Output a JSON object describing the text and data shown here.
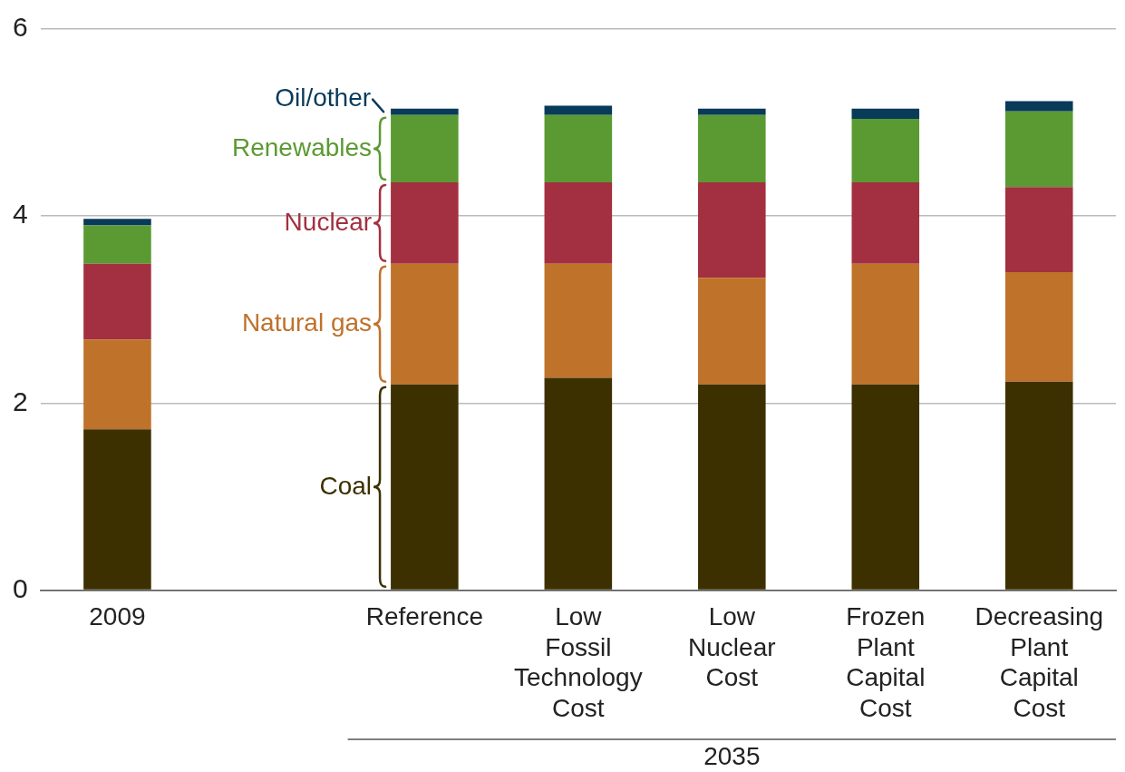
{
  "chart_data": {
    "type": "bar",
    "stacked": true,
    "categories": [
      "2009",
      null,
      "Reference",
      "Low Fossil Technology Cost",
      "Low Nuclear Cost",
      "Frozen Plant Capital Cost",
      "Decreasing Plant Capital Cost"
    ],
    "series": [
      {
        "name": "Coal",
        "color": "#3d3000",
        "values": [
          1.72,
          null,
          2.2,
          2.27,
          2.2,
          2.2,
          2.23
        ]
      },
      {
        "name": "Natural gas",
        "color": "#bf722a",
        "values": [
          0.96,
          null,
          1.29,
          1.22,
          1.14,
          1.29,
          1.17
        ]
      },
      {
        "name": "Nuclear",
        "color": "#a33040",
        "values": [
          0.81,
          null,
          0.87,
          0.87,
          1.02,
          0.87,
          0.91
        ]
      },
      {
        "name": "Renewables",
        "color": "#5b9a32",
        "values": [
          0.41,
          null,
          0.72,
          0.72,
          0.72,
          0.68,
          0.81
        ]
      },
      {
        "name": "Oil/other",
        "color": "#083a5a",
        "values": [
          0.07,
          null,
          0.07,
          0.1,
          0.07,
          0.11,
          0.11
        ]
      }
    ],
    "ylim": [
      0,
      6
    ],
    "yticks": [
      0,
      2,
      4,
      6
    ],
    "grid": "y",
    "annotations": [
      "2035"
    ]
  }
}
